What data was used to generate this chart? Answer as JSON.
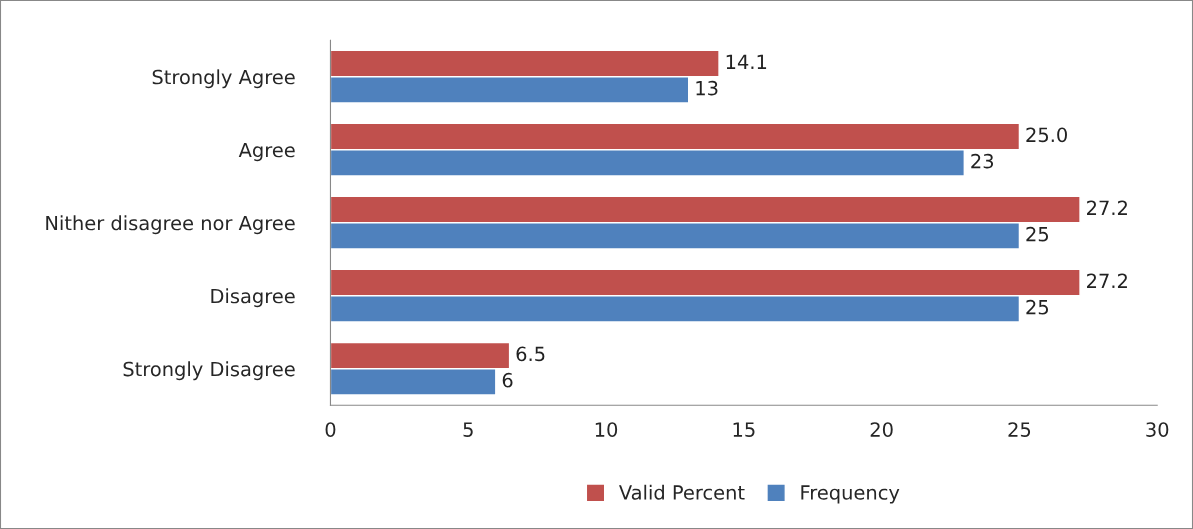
{
  "chart_data": {
    "type": "bar",
    "orientation": "horizontal",
    "categories": [
      "Strongly Agree",
      "Agree",
      "Nither disagree nor Agree",
      "Disagree",
      "Strongly Disagree"
    ],
    "series": [
      {
        "name": "Valid Percent",
        "color": "#c0504d",
        "values": [
          14.1,
          25.0,
          27.2,
          27.2,
          6.5
        ],
        "value_labels": [
          "14.1",
          "25.0",
          "27.2",
          "27.2",
          "6.5"
        ]
      },
      {
        "name": "Frequency",
        "color": "#4f81bd",
        "values": [
          13,
          23,
          25,
          25,
          6
        ],
        "value_labels": [
          "13",
          "23",
          "25",
          "25",
          "6"
        ]
      }
    ],
    "xlim": [
      0,
      30
    ],
    "xticks": [
      0,
      5,
      10,
      15,
      20,
      25,
      30
    ],
    "grid": false,
    "legend": "bottom"
  }
}
